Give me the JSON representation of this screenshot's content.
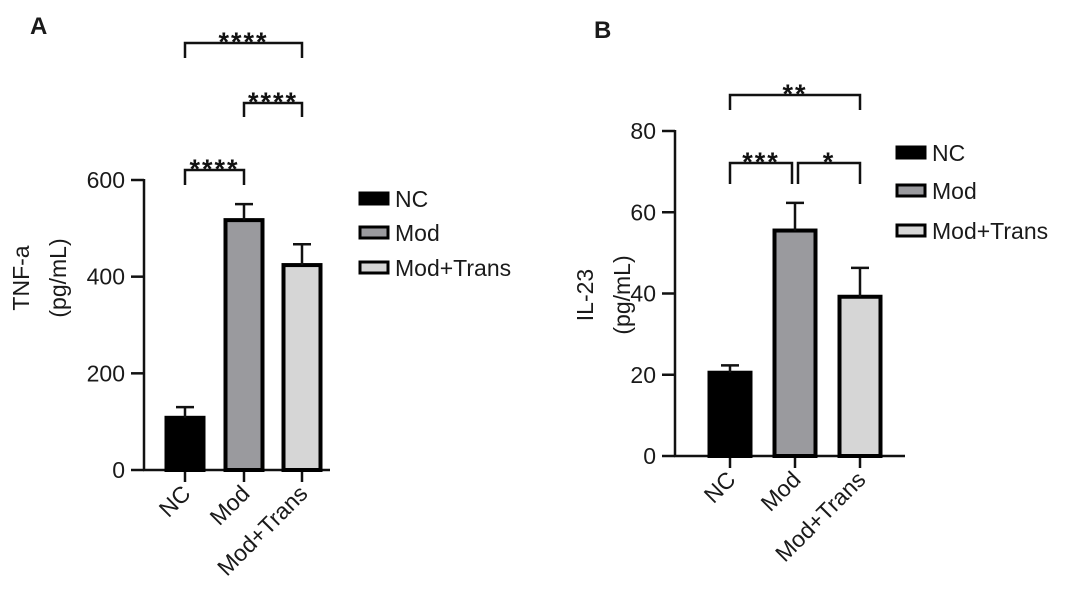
{
  "chart_data": [
    {
      "type": "bar",
      "panel": "A",
      "categories": [
        "NC",
        "Mod",
        "Mod+Trans"
      ],
      "values": [
        108,
        517,
        424
      ],
      "errors": [
        22,
        33,
        43
      ],
      "ylabel_line1": "TNF-a",
      "ylabel_line2": "(pg/mL)",
      "ylim": [
        0,
        600
      ],
      "yticks": [
        0,
        200,
        400,
        600
      ],
      "legend": [
        "NC",
        "Mod",
        "Mod+Trans"
      ],
      "legend_position": "right",
      "bar_colors": [
        "#000000",
        "#9a9a9e",
        "#d6d6d6"
      ],
      "comparisons": [
        {
          "from": "NC",
          "to": "Mod",
          "label": "****"
        },
        {
          "from": "Mod",
          "to": "Mod+Trans",
          "label": "****"
        },
        {
          "from": "NC",
          "to": "Mod+Trans",
          "label": "****"
        }
      ]
    },
    {
      "type": "bar",
      "panel": "B",
      "categories": [
        "NC",
        "Mod",
        "Mod+Trans"
      ],
      "values": [
        20.5,
        55.5,
        39.2
      ],
      "errors": [
        1.8,
        6.8,
        7.1
      ],
      "ylabel_line1": "IL-23",
      "ylabel_line2": "(pg/mL)",
      "ylim": [
        0,
        80
      ],
      "yticks": [
        0,
        20,
        40,
        60,
        80
      ],
      "legend": [
        "NC",
        "Mod",
        "Mod+Trans"
      ],
      "legend_position": "right",
      "bar_colors": [
        "#000000",
        "#9a9a9e",
        "#d6d6d6"
      ],
      "comparisons": [
        {
          "from": "NC",
          "to": "Mod",
          "label": "***"
        },
        {
          "from": "Mod",
          "to": "Mod+Trans",
          "label": "*"
        },
        {
          "from": "NC",
          "to": "Mod+Trans",
          "label": "**"
        }
      ]
    }
  ]
}
